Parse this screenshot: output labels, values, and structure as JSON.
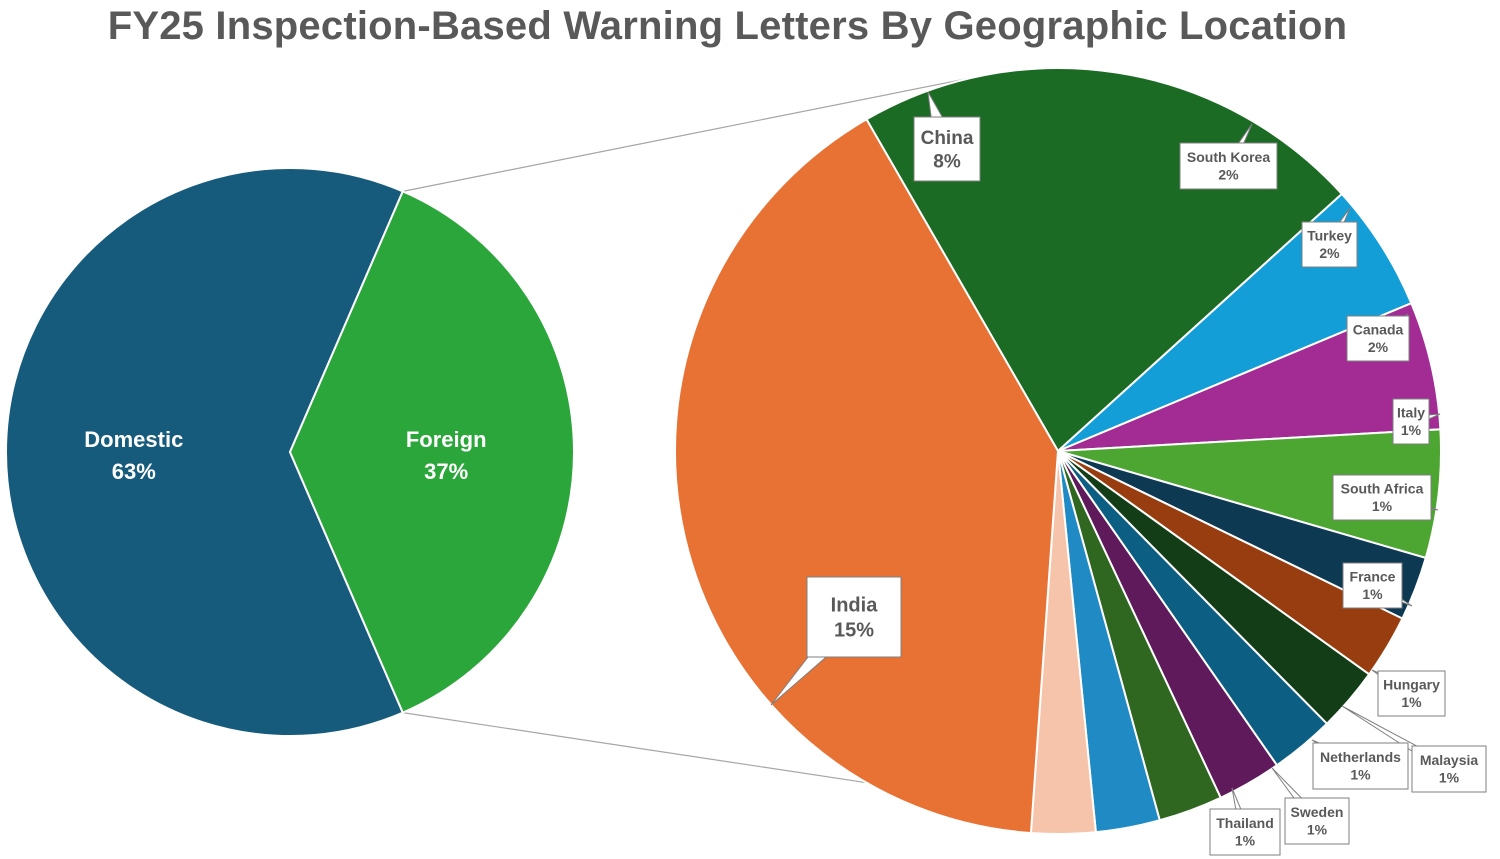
{
  "chart_data": {
    "type": "pie",
    "title": "FY25 Inspection-Based Warning Letters By Geographic Location",
    "main_pie": {
      "slices": [
        {
          "label": "Domestic",
          "value_label": "63%",
          "value": 63,
          "color": "#175b7c"
        },
        {
          "label": "Foreign",
          "value_label": "37%",
          "value": 37,
          "color": "#2ba63a"
        }
      ]
    },
    "breakout_pie": {
      "of": "Foreign",
      "slices": [
        {
          "label": "China",
          "value_label": "8%",
          "value": 8,
          "color": "#1c6b25"
        },
        {
          "label": "South Korea",
          "value_label": "2%",
          "value": 2,
          "color": "#139ed8"
        },
        {
          "label": "Turkey",
          "value_label": "2%",
          "value": 2,
          "color": "#a22b94"
        },
        {
          "label": "Canada",
          "value_label": "2%",
          "value": 2,
          "color": "#4ea632"
        },
        {
          "label": "Italy",
          "value_label": "1%",
          "value": 1,
          "color": "#0d3a52"
        },
        {
          "label": "South Africa",
          "value_label": "1%",
          "value": 1,
          "color": "#983d10"
        },
        {
          "label": "France",
          "value_label": "1%",
          "value": 1,
          "color": "#133d16"
        },
        {
          "label": "Hungary",
          "value_label": "1%",
          "value": 1,
          "color": "#0c5f82"
        },
        {
          "label": "Malaysia",
          "value_label": "1%",
          "value": 1,
          "color": "#5e1a5a"
        },
        {
          "label": "Netherlands",
          "value_label": "1%",
          "value": 1,
          "color": "#2f6620"
        },
        {
          "label": "Sweden",
          "value_label": "1%",
          "value": 1,
          "color": "#1f8ac4"
        },
        {
          "label": "Thailand",
          "value_label": "1%",
          "value": 1,
          "color": "#f5c4aa"
        },
        {
          "label": "India",
          "value_label": "15%",
          "value": 15,
          "color": "#e87234"
        }
      ]
    }
  }
}
